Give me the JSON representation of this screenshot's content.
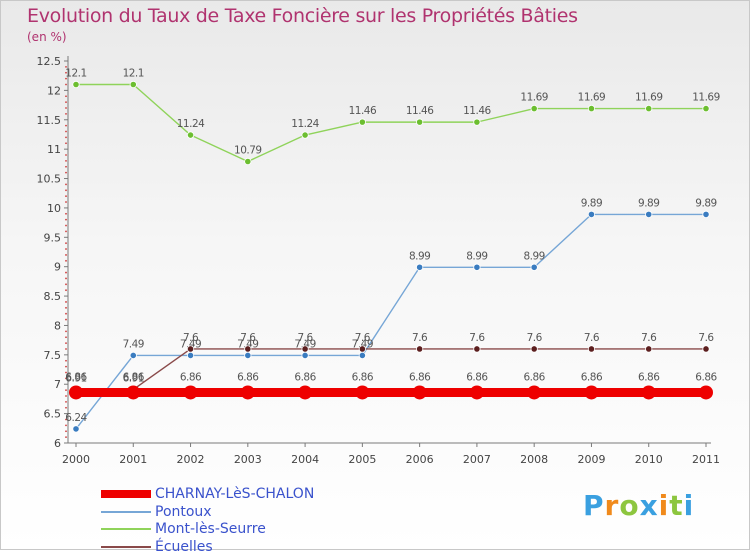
{
  "chart_data": {
    "type": "line",
    "title": "Evolution du Taux de Taxe Foncière sur les Propriétés Bâties",
    "ylabel": "(en %)",
    "categories": [
      "2000",
      "2001",
      "2002",
      "2003",
      "2004",
      "2005",
      "2006",
      "2007",
      "2008",
      "2009",
      "2010",
      "2011"
    ],
    "ylim": [
      6,
      12.5
    ],
    "yticks": [
      "6",
      "6.5",
      "7",
      "7.5",
      "8",
      "8.5",
      "9",
      "9.5",
      "10",
      "10.5",
      "11",
      "11.5",
      "12",
      "12.5"
    ],
    "ytick_values": [
      6,
      6.5,
      7,
      7.5,
      8,
      8.5,
      9,
      9.5,
      10,
      10.5,
      11,
      11.5,
      12,
      12.5
    ],
    "series": [
      {
        "name": "Mont-lès-Seurre",
        "color": "#8fd35a",
        "marker_color": "#6cbe30",
        "values": [
          12.1,
          12.1,
          11.24,
          10.79,
          11.24,
          11.46,
          11.46,
          11.46,
          11.69,
          11.69,
          11.69,
          11.69
        ],
        "labels": [
          "12.1",
          "12.1",
          "11.24",
          "10.79",
          "11.24",
          "11.46",
          "11.46",
          "11.46",
          "11.69",
          "11.69",
          "11.69",
          "11.69"
        ]
      },
      {
        "name": "Pontoux",
        "color": "#76a6d6",
        "marker_color": "#3a7cc0",
        "values": [
          6.24,
          7.49,
          7.49,
          7.49,
          7.49,
          7.49,
          8.99,
          8.99,
          8.99,
          9.89,
          9.89,
          9.89
        ],
        "labels": [
          "6.24",
          "7.49",
          "7.49",
          "7.49",
          "7.49",
          "7.49",
          "8.99",
          "8.99",
          "8.99",
          "9.89",
          "9.89",
          "9.89"
        ]
      },
      {
        "name": "Écuelles",
        "color": "#8a4a4a",
        "marker_color": "#5c1f1f",
        "values": [
          6.91,
          6.91,
          7.6,
          7.6,
          7.6,
          7.6,
          7.6,
          7.6,
          7.6,
          7.6,
          7.6,
          7.6
        ],
        "labels": [
          "6.91",
          "6.91",
          "7.6",
          "7.6",
          "7.6",
          "7.6",
          "7.6",
          "7.6",
          "7.6",
          "7.6",
          "7.6",
          "7.6"
        ]
      },
      {
        "name": "CHARNAY-LèS-CHALON",
        "color": "#ee0000",
        "marker_color": "#ee0000",
        "thick": true,
        "values": [
          6.86,
          6.86,
          6.86,
          6.86,
          6.86,
          6.86,
          6.86,
          6.86,
          6.86,
          6.86,
          6.86,
          6.86
        ],
        "labels": [
          "6.86",
          "6.86",
          "6.86",
          "6.86",
          "6.86",
          "6.86",
          "6.86",
          "6.86",
          "6.86",
          "6.86",
          "6.86",
          "6.86"
        ]
      }
    ],
    "legend": [
      {
        "label": "CHARNAY-LèS-CHALON",
        "color": "#ee0000",
        "thick": true
      },
      {
        "label": "Pontoux",
        "color": "#76a6d6",
        "thick": false
      },
      {
        "label": "Mont-lès-Seurre",
        "color": "#8fd35a",
        "thick": false
      },
      {
        "label": "Écuelles",
        "color": "#8a4a4a",
        "thick": false
      }
    ]
  },
  "logo": {
    "text": "Proxiti",
    "letters": [
      "P",
      "r",
      "o",
      "x",
      "i",
      "t",
      "i"
    ],
    "colors": [
      "#3aa0e0",
      "#f08a1c",
      "#8dc63f",
      "#3aa0e0",
      "#f08a1c",
      "#8dc63f",
      "#3aa0e0"
    ]
  }
}
